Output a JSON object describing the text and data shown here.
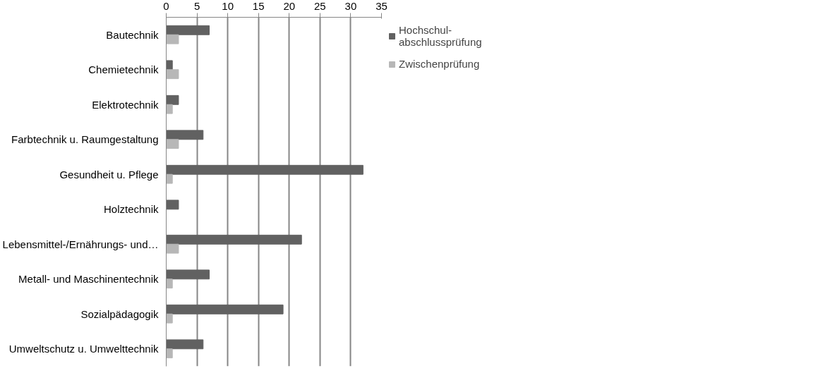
{
  "chart_data": {
    "type": "bar",
    "orientation": "horizontal",
    "categories": [
      "Bautechnik",
      "Chemietechnik",
      "Elektrotechnik",
      "Farbtechnik u. Raumgestaltung",
      "Gesundheit u. Pflege",
      "Holztechnik",
      "Lebensmittel-/Ernährungs- und…",
      "Metall- und Maschinentechnik",
      "Sozialpädagogik",
      "Umweltschutz u. Umwelttechnik"
    ],
    "series": [
      {
        "name": "Hochschul-abschlussprüfung",
        "color": "#616161",
        "values": [
          7,
          1,
          2,
          6,
          32,
          2,
          22,
          7,
          19,
          6
        ]
      },
      {
        "name": "Zwischenprüfung",
        "color": "#b7b7b7",
        "values": [
          2,
          2,
          1,
          2,
          1,
          0,
          2,
          1,
          1,
          1
        ]
      }
    ],
    "xlim": [
      0,
      35
    ],
    "xticks": [
      0,
      5,
      10,
      15,
      20,
      25,
      30,
      35
    ],
    "grid": "x",
    "legend": "right"
  }
}
